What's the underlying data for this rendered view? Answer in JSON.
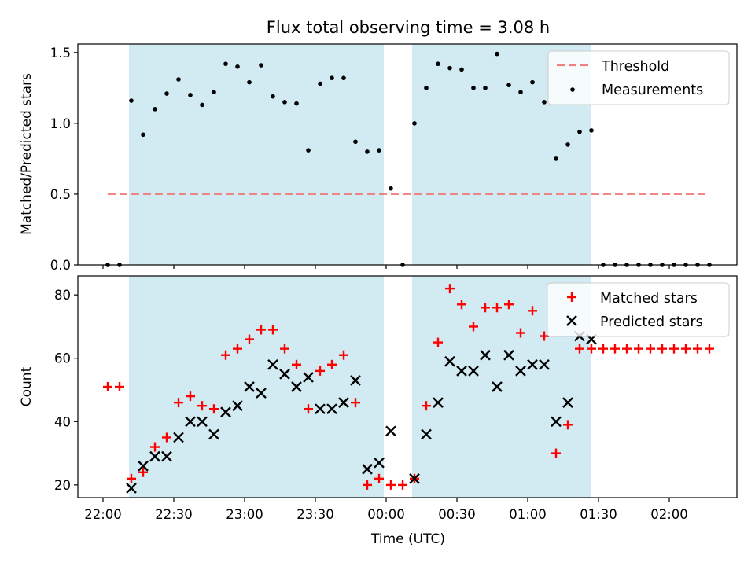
{
  "chart_data": {
    "title": "Flux total observing time = 3.08 h",
    "xlabel": "Time (UTC)",
    "x_ticks": [
      "22:00",
      "22:30",
      "23:00",
      "23:30",
      "00:00",
      "00:30",
      "01:00",
      "01:30",
      "02:00"
    ],
    "shaded_intervals": [
      [
        "22:11",
        "23:59"
      ],
      [
        "00:11",
        "01:27"
      ]
    ],
    "colors": {
      "shade": "#add8e6",
      "threshold": "#f08080",
      "matched": "#ff0000",
      "predicted": "#000000",
      "measure": "#000000"
    },
    "top": {
      "type": "scatter",
      "ylabel": "Matched/Predicted stars",
      "ylim": [
        0,
        1.56
      ],
      "y_ticks": [
        "0.0",
        "0.5",
        "1.0",
        "1.5"
      ],
      "threshold": {
        "name": "Threshold",
        "value": 0.5,
        "x_range": [
          "22:02",
          "02:17"
        ]
      },
      "series_name": "Measurements",
      "x": [
        "22:02",
        "22:07",
        "22:12",
        "22:17",
        "22:22",
        "22:27",
        "22:32",
        "22:37",
        "22:42",
        "22:47",
        "22:52",
        "22:57",
        "23:02",
        "23:07",
        "23:12",
        "23:17",
        "23:22",
        "23:27",
        "23:32",
        "23:37",
        "23:42",
        "23:47",
        "23:52",
        "23:57",
        "00:02",
        "00:07",
        "00:12",
        "00:17",
        "00:22",
        "00:27",
        "00:32",
        "00:37",
        "00:42",
        "00:47",
        "00:52",
        "00:57",
        "01:02",
        "01:07",
        "01:12",
        "01:17",
        "01:22",
        "01:27",
        "01:32",
        "01:37",
        "01:42",
        "01:47",
        "01:52",
        "01:57",
        "02:02",
        "02:07",
        "02:12",
        "02:17"
      ],
      "y": [
        0.0,
        0.0,
        1.16,
        0.92,
        1.1,
        1.21,
        1.31,
        1.2,
        1.13,
        1.22,
        1.42,
        1.4,
        1.29,
        1.41,
        1.19,
        1.15,
        1.14,
        0.81,
        1.28,
        1.32,
        1.32,
        0.87,
        0.8,
        0.81,
        0.54,
        0.0,
        1.0,
        1.25,
        1.42,
        1.39,
        1.38,
        1.25,
        1.25,
        1.49,
        1.27,
        1.22,
        1.29,
        1.15,
        0.75,
        0.85,
        0.94,
        0.95,
        0.0,
        0.0,
        0.0,
        0.0,
        0.0,
        0.0,
        0.0,
        0.0,
        0.0,
        0.0
      ]
    },
    "bottom": {
      "type": "scatter",
      "ylabel": "Count",
      "ylim": [
        16,
        86
      ],
      "y_ticks": [
        "20",
        "40",
        "60",
        "80"
      ],
      "series": [
        {
          "name": "Matched stars",
          "x": [
            "22:02",
            "22:07",
            "22:12",
            "22:17",
            "22:22",
            "22:27",
            "22:32",
            "22:37",
            "22:42",
            "22:47",
            "22:52",
            "22:57",
            "23:02",
            "23:07",
            "23:12",
            "23:17",
            "23:22",
            "23:27",
            "23:32",
            "23:37",
            "23:42",
            "23:47",
            "23:52",
            "23:57",
            "00:02",
            "00:07",
            "00:12",
            "00:17",
            "00:22",
            "00:27",
            "00:32",
            "00:37",
            "00:42",
            "00:47",
            "00:52",
            "00:57",
            "01:02",
            "01:07",
            "01:12",
            "01:17",
            "01:22",
            "01:27",
            "01:32",
            "01:37",
            "01:42",
            "01:47",
            "01:52",
            "01:57",
            "02:02",
            "02:07",
            "02:12",
            "02:17"
          ],
          "values": [
            51,
            51,
            22,
            24,
            32,
            35,
            46,
            48,
            45,
            44,
            61,
            63,
            66,
            69,
            69,
            63,
            58,
            44,
            56,
            58,
            61,
            46,
            20,
            22,
            20,
            20,
            22,
            45,
            65,
            82,
            77,
            70,
            76,
            76,
            77,
            68,
            75,
            67,
            30,
            39,
            63,
            63,
            63,
            63,
            63,
            63,
            63,
            63,
            63,
            63,
            63,
            63
          ]
        },
        {
          "name": "Predicted stars",
          "x": [
            "22:12",
            "22:17",
            "22:22",
            "22:27",
            "22:32",
            "22:37",
            "22:42",
            "22:47",
            "22:52",
            "22:57",
            "23:02",
            "23:07",
            "23:12",
            "23:17",
            "23:22",
            "23:27",
            "23:32",
            "23:37",
            "23:42",
            "23:47",
            "23:52",
            "23:57",
            "00:02",
            "00:12",
            "00:17",
            "00:22",
            "00:27",
            "00:32",
            "00:37",
            "00:42",
            "00:47",
            "00:52",
            "00:57",
            "01:02",
            "01:07",
            "01:12",
            "01:17",
            "01:22",
            "01:27"
          ],
          "values": [
            19,
            26,
            29,
            29,
            35,
            40,
            40,
            36,
            43,
            45,
            51,
            49,
            58,
            55,
            51,
            54,
            44,
            44,
            46,
            53,
            25,
            27,
            37,
            22,
            36,
            46,
            59,
            56,
            56,
            61,
            51,
            61,
            56,
            58,
            58,
            40,
            46,
            67,
            66
          ]
        }
      ]
    }
  }
}
